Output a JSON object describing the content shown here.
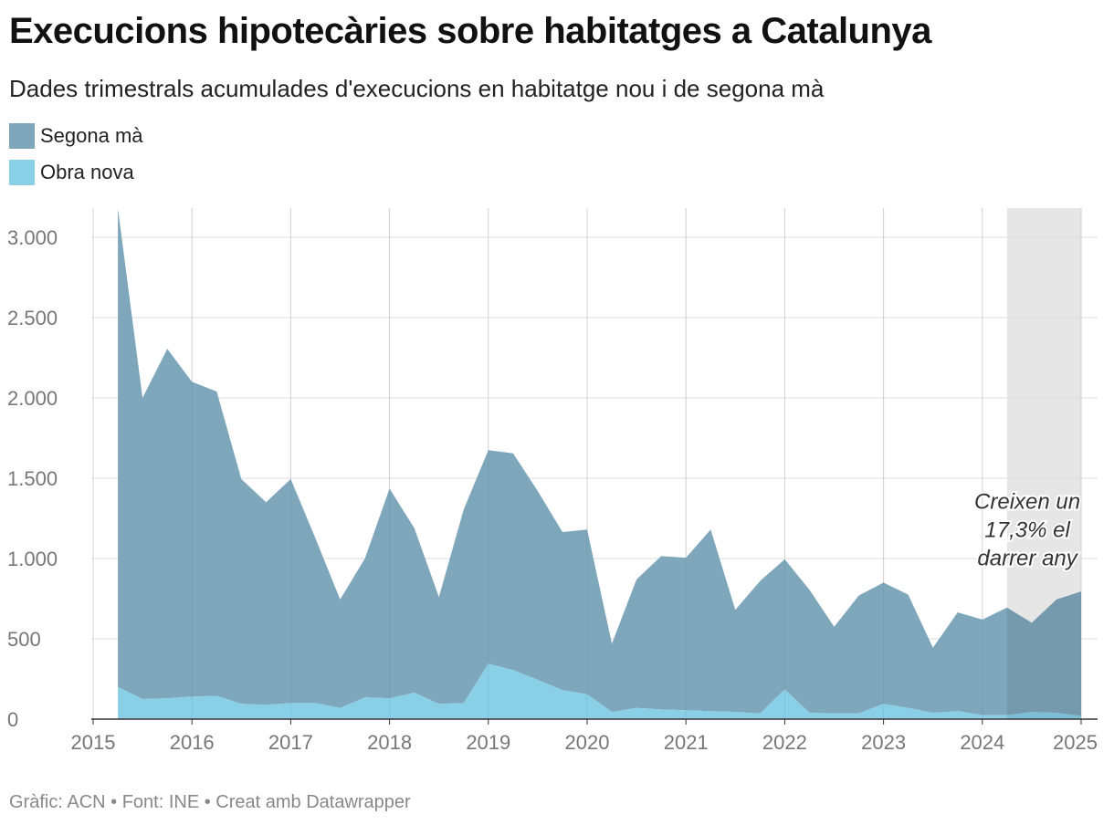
{
  "header": {
    "title": "Execucions hipotecàries sobre habitatges a Catalunya",
    "subtitle": "Dades trimestrals acumulades d'execucions en habitatge nou i de segona mà"
  },
  "legend": [
    {
      "label": "Segona mà",
      "color": "#7fa7bc"
    },
    {
      "label": "Obra nova",
      "color": "#89cfe6"
    }
  ],
  "footer": "Gràfic: ACN • Font: INE • Creat amb Datawrapper",
  "chart_data": {
    "type": "area",
    "stacked": true,
    "title": "Execucions hipotecàries sobre habitatges a Catalunya",
    "xlabel": "",
    "ylabel": "",
    "xlim": [
      2015.0,
      2025.2
    ],
    "ylim": [
      0,
      3200
    ],
    "yticks": [
      0,
      500,
      1000,
      1500,
      2000,
      2500,
      3000
    ],
    "ytick_labels": [
      "0",
      "500",
      "1.000",
      "1.500",
      "2.000",
      "2.500",
      "3.000"
    ],
    "xticks": [
      2015,
      2016,
      2017,
      2018,
      2019,
      2020,
      2021,
      2022,
      2023,
      2024,
      2025
    ],
    "xtick_labels": [
      "2015",
      "2016",
      "2017",
      "2018",
      "2019",
      "2020",
      "2021",
      "2022",
      "2023",
      "2024",
      "2025"
    ],
    "x": [
      2015.25,
      2015.5,
      2015.75,
      2016.0,
      2016.25,
      2016.5,
      2016.75,
      2017.0,
      2017.25,
      2017.5,
      2017.75,
      2018.0,
      2018.25,
      2018.5,
      2018.75,
      2019.0,
      2019.25,
      2019.5,
      2019.75,
      2020.0,
      2020.25,
      2020.5,
      2020.75,
      2021.0,
      2021.25,
      2021.5,
      2021.75,
      2022.0,
      2022.25,
      2022.5,
      2022.75,
      2023.0,
      2023.25,
      2023.5,
      2023.75,
      2024.0,
      2024.25,
      2024.5,
      2024.75,
      2025.0
    ],
    "series": [
      {
        "name": "Obra nova",
        "color": "#89cfe6",
        "values": [
          200,
          125,
          130,
          140,
          145,
          95,
          90,
          100,
          100,
          70,
          135,
          130,
          165,
          95,
          100,
          345,
          305,
          245,
          180,
          155,
          45,
          70,
          60,
          55,
          50,
          45,
          35,
          185,
          40,
          35,
          35,
          95,
          70,
          40,
          50,
          25,
          25,
          45,
          40,
          20
        ]
      },
      {
        "name": "Segona mà",
        "color": "#7fa7bc",
        "values": [
          2980,
          1875,
          2175,
          1960,
          1895,
          1400,
          1260,
          1395,
          1025,
          675,
          865,
          1305,
          1025,
          665,
          1205,
          1330,
          1350,
          1175,
          985,
          1025,
          425,
          800,
          955,
          950,
          1130,
          635,
          825,
          810,
          765,
          540,
          735,
          755,
          705,
          405,
          615,
          595,
          670,
          555,
          705,
          775
        ]
      }
    ],
    "highlight": {
      "x_start": 2024.25,
      "x_end": 2025.0,
      "color": "#e6e6e6"
    },
    "annotation": {
      "lines": [
        "Creixen un",
        "17,3% el",
        "darrer any"
      ],
      "x": 2024.4,
      "y": 1470
    }
  }
}
